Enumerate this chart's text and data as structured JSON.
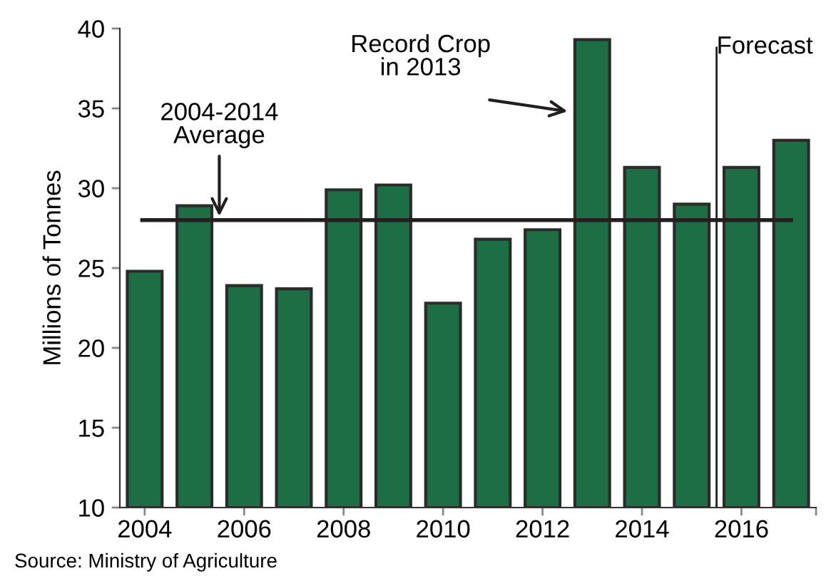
{
  "chart_data": {
    "type": "bar",
    "ylabel": "Millions of Tonnes",
    "x": [
      2004,
      2005,
      2006,
      2007,
      2008,
      2009,
      2010,
      2011,
      2012,
      2013,
      2014,
      2015,
      2016,
      2017
    ],
    "values": [
      24.8,
      28.9,
      23.9,
      23.7,
      29.9,
      30.2,
      22.8,
      26.8,
      27.4,
      39.3,
      31.3,
      29.0,
      31.3,
      33.0
    ],
    "color": "#1e6e45",
    "xlim": [
      2003.5,
      2017.5
    ],
    "xticks": [
      2004,
      2006,
      2008,
      2010,
      2012,
      2014,
      2016,
      {
        "value": 2017.5,
        "label": null
      }
    ],
    "ylim": [
      10,
      40
    ],
    "yticks": [
      10,
      15,
      20,
      25,
      30,
      35,
      40
    ],
    "ref_lines": [
      {
        "axis": "y",
        "value": 28,
        "label": "2004-2014\nAverage",
        "color": "#231f20"
      },
      {
        "axis": "x",
        "value": 2015.5,
        "label": "Forecast",
        "color": "#231f20"
      }
    ],
    "annotations": [
      "Record Crop\nin 2013",
      "Source: Ministry of Agriculture"
    ],
    "grid": false
  }
}
